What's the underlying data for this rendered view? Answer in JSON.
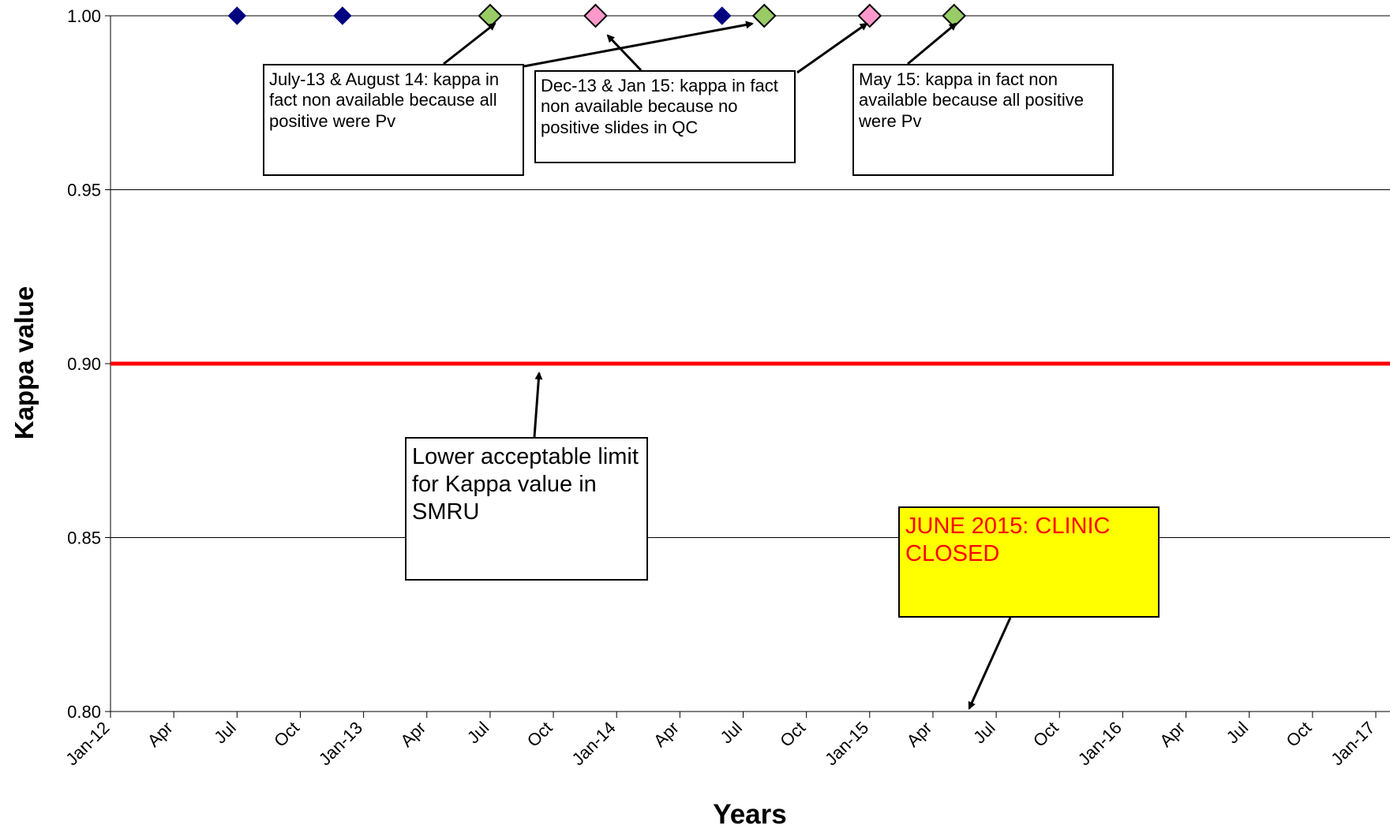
{
  "chart_data": {
    "type": "scatter",
    "xlabel": "Years",
    "ylabel": "Kappa value",
    "ylim": [
      0.8,
      1.0
    ],
    "xlim": [
      "2012-01",
      "2017-01"
    ],
    "grid": "horizontal",
    "y_ticks": [
      "0.80",
      "0.85",
      "0.90",
      "0.95",
      "1.00"
    ],
    "x_ticks": [
      "Jan-12",
      "Apr",
      "Jul",
      "Oct",
      "Jan-13",
      "Apr",
      "Jul",
      "Oct",
      "Jan-14",
      "Apr",
      "Jul",
      "Oct",
      "Jan-15",
      "Apr",
      "Jul",
      "Oct",
      "Jan-16",
      "Apr",
      "Jul",
      "Oct",
      "Jan-17"
    ],
    "reference_line": {
      "y": 0.9,
      "color": "#ff0000"
    },
    "series": [
      {
        "marker": "small-diamond",
        "color": "#000080",
        "points": [
          {
            "x": "2012-07",
            "y": 1.0
          },
          {
            "x": "2012-12",
            "y": 1.0
          },
          {
            "x": "2014-06",
            "y": 1.0
          }
        ]
      },
      {
        "marker": "large-diamond",
        "color": "#99cc66",
        "points": [
          {
            "x": "2013-07",
            "y": 1.0
          },
          {
            "x": "2014-08",
            "y": 1.0
          },
          {
            "x": "2015-05",
            "y": 1.0
          }
        ]
      },
      {
        "marker": "large-diamond",
        "color": "#ff99cc",
        "points": [
          {
            "x": "2013-12",
            "y": 1.0
          },
          {
            "x": "2015-01",
            "y": 1.0
          }
        ]
      }
    ],
    "annotations": [
      {
        "id": "jul13-aug14",
        "text": "July-13 & August 14: kappa in fact non available because all positive were Pv",
        "style": "small"
      },
      {
        "id": "dec13-jan15",
        "text": "Dec-13 & Jan 15: kappa in fact non available because no positive slides in QC",
        "style": "small"
      },
      {
        "id": "may15",
        "text": "May 15: kappa in fact non available because all positive were Pv",
        "style": "small"
      },
      {
        "id": "lower-limit",
        "text": "Lower acceptable limit for Kappa value in SMRU",
        "style": "large"
      },
      {
        "id": "clinic-closed",
        "text": "JUNE 2015: CLINIC CLOSED",
        "style": "closed",
        "background": "#ffff00",
        "text_color": "#ff0000"
      }
    ]
  }
}
